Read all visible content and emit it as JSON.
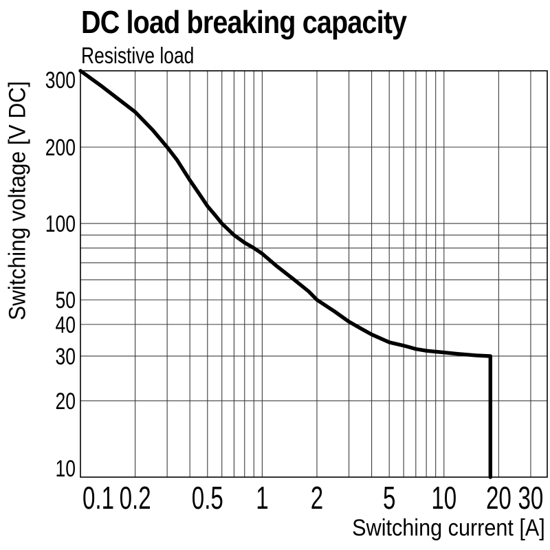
{
  "title": "DC load breaking capacity",
  "subtitle": "Resistive load",
  "chart_data": {
    "type": "line",
    "title": "DC load breaking capacity",
    "subtitle": "Resistive load",
    "xlabel": "Switching current [A]",
    "ylabel": "Switching voltage [V DC]",
    "x_scale": "log",
    "y_scale": "log (segment 200-300 expanded as drawn)",
    "grid": "on",
    "legend": "none",
    "xlim": [
      0.1,
      37
    ],
    "ylim": [
      10,
      300
    ],
    "x_tick_values": [
      0.1,
      0.2,
      0.5,
      1,
      2,
      5,
      10,
      20,
      30
    ],
    "x_tick_labels": [
      "0.1",
      "0.2",
      "0.5",
      "1",
      "2",
      "5",
      "10",
      "20",
      "30"
    ],
    "y_tick_values": [
      300,
      200,
      100,
      50,
      40,
      30,
      20,
      10
    ],
    "y_tick_labels": [
      "300",
      "200",
      "100",
      "50",
      "40",
      "30",
      "20",
      "10"
    ],
    "x_gridlines": [
      0.2,
      0.3,
      0.4,
      0.5,
      0.6,
      0.7,
      0.8,
      0.9,
      1,
      2,
      3,
      4,
      5,
      6,
      7,
      8,
      9,
      10,
      20,
      30
    ],
    "y_gridlines": [
      20,
      30,
      40,
      50,
      60,
      70,
      80,
      90,
      100,
      200
    ],
    "series": [
      {
        "name": "Resistive load",
        "color": "#000000",
        "points": [
          [
            0.1,
            300
          ],
          [
            0.13,
            277
          ],
          [
            0.16,
            259
          ],
          [
            0.2,
            241
          ],
          [
            0.25,
            219
          ],
          [
            0.3,
            200
          ],
          [
            0.34,
            178
          ],
          [
            0.4,
            148
          ],
          [
            0.45,
            131
          ],
          [
            0.5,
            117
          ],
          [
            0.55,
            108
          ],
          [
            0.6,
            100
          ],
          [
            0.7,
            90
          ],
          [
            0.8,
            84
          ],
          [
            0.9,
            80
          ],
          [
            1,
            76
          ],
          [
            1.2,
            68
          ],
          [
            1.5,
            60
          ],
          [
            1.8,
            54
          ],
          [
            2,
            50
          ],
          [
            2.5,
            45
          ],
          [
            3,
            41
          ],
          [
            3.5,
            38.5
          ],
          [
            4,
            36.5
          ],
          [
            5,
            34
          ],
          [
            6,
            33
          ],
          [
            7,
            32
          ],
          [
            8,
            31.5
          ],
          [
            10,
            31
          ],
          [
            12,
            30.6
          ],
          [
            15,
            30.2
          ],
          [
            18,
            30
          ],
          [
            18,
            10
          ]
        ]
      }
    ]
  },
  "colors": {
    "background": "#ffffff",
    "text": "#000000",
    "grid": "#3a3a3a",
    "frame": "#000000",
    "curve": "#050505"
  }
}
